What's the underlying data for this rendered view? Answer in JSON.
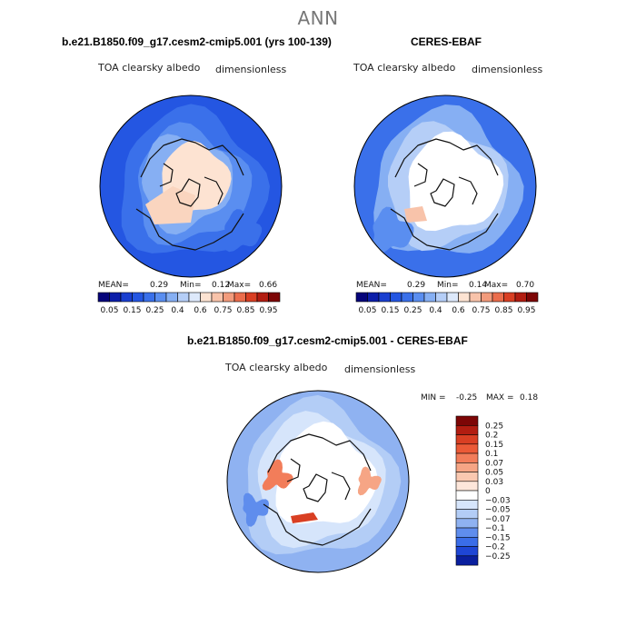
{
  "season": "ANN",
  "panels": [
    {
      "title": "b.e21.B1850.f09_g17.cesm2-cmip5.001 (yrs 100-139)",
      "variable": "TOA clearsky albedo",
      "units": "dimensionless",
      "stats": {
        "mean_label": "MEAN=",
        "mean": "0.29",
        "min_label": "Min=",
        "min": "0.12",
        "max_label": "Max=",
        "max": "0.66"
      }
    },
    {
      "title": "CERES-EBAF",
      "variable": "TOA clearsky albedo",
      "units": "dimensionless",
      "stats": {
        "mean_label": "MEAN=",
        "mean": "0.29",
        "min_label": "Min=",
        "min": "0.14",
        "max_label": "Max=",
        "max": "0.70"
      }
    },
    {
      "title": "b.e21.B1850.f09_g17.cesm2-cmip5.001 - CERES-EBAF",
      "variable": "TOA clearsky albedo",
      "units": "dimensionless",
      "stats": {
        "min_label": "MIN =",
        "min": "-0.25",
        "max_label": "MAX =",
        "max": "0.18"
      }
    }
  ],
  "chart_data": [
    {
      "type": "heatmap",
      "projection": "north-polar-stereographic",
      "title": "b.e21.B1850.f09_g17.cesm2-cmip5.001 (yrs 100-139)",
      "variable": "TOA clearsky albedo",
      "units": "dimensionless",
      "mean": 0.29,
      "min": 0.12,
      "max": 0.66,
      "colorbar": {
        "orientation": "horizontal",
        "tick_labels": [
          "0.05",
          "0.15",
          "0.25",
          "0.4",
          "0.6",
          "0.75",
          "0.85",
          "0.95"
        ],
        "colors": [
          "#06047a",
          "#0c1ea9",
          "#1a3fd0",
          "#2456e2",
          "#3a70ea",
          "#5a8ef0",
          "#86aff3",
          "#b5cef7",
          "#dde9fb",
          "#fde3d2",
          "#f8c3aa",
          "#f29b7c",
          "#eb6d4c",
          "#d93f23",
          "#b21d11",
          "#7d0606"
        ]
      }
    },
    {
      "type": "heatmap",
      "projection": "north-polar-stereographic",
      "title": "CERES-EBAF",
      "variable": "TOA clearsky albedo",
      "units": "dimensionless",
      "mean": 0.29,
      "min": 0.14,
      "max": 0.7,
      "colorbar": {
        "orientation": "horizontal",
        "tick_labels": [
          "0.05",
          "0.15",
          "0.25",
          "0.4",
          "0.6",
          "0.75",
          "0.85",
          "0.95"
        ],
        "colors": [
          "#06047a",
          "#0c1ea9",
          "#1a3fd0",
          "#2456e2",
          "#3a70ea",
          "#5a8ef0",
          "#86aff3",
          "#b5cef7",
          "#dde9fb",
          "#fde3d2",
          "#f8c3aa",
          "#f29b7c",
          "#eb6d4c",
          "#d93f23",
          "#b21d11",
          "#7d0606"
        ]
      }
    },
    {
      "type": "heatmap",
      "projection": "north-polar-stereographic",
      "title": "b.e21.B1850.f09_g17.cesm2-cmip5.001 - CERES-EBAF",
      "variable": "TOA clearsky albedo",
      "units": "dimensionless",
      "min": -0.25,
      "max": 0.18,
      "colorbar": {
        "orientation": "vertical",
        "tick_labels": [
          "0.25",
          "0.2",
          "0.15",
          "0.1",
          "0.07",
          "0.05",
          "0.03",
          "0",
          "−0.03",
          "−0.05",
          "−0.07",
          "−0.1",
          "−0.15",
          "−0.2",
          "−0.25"
        ],
        "colors": [
          "#7d0606",
          "#b21d11",
          "#d93f23",
          "#eb5a37",
          "#f27d5a",
          "#f6a585",
          "#fac8b0",
          "#fde6da",
          "#ffffff",
          "#d6e5fb",
          "#b3cdf6",
          "#8fb2f1",
          "#5f8ded",
          "#3a6de8",
          "#1e46d5",
          "#0a1f9e"
        ]
      }
    }
  ]
}
